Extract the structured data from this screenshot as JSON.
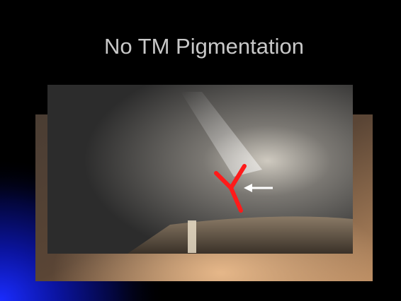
{
  "title": "No TM Pigmentation"
}
